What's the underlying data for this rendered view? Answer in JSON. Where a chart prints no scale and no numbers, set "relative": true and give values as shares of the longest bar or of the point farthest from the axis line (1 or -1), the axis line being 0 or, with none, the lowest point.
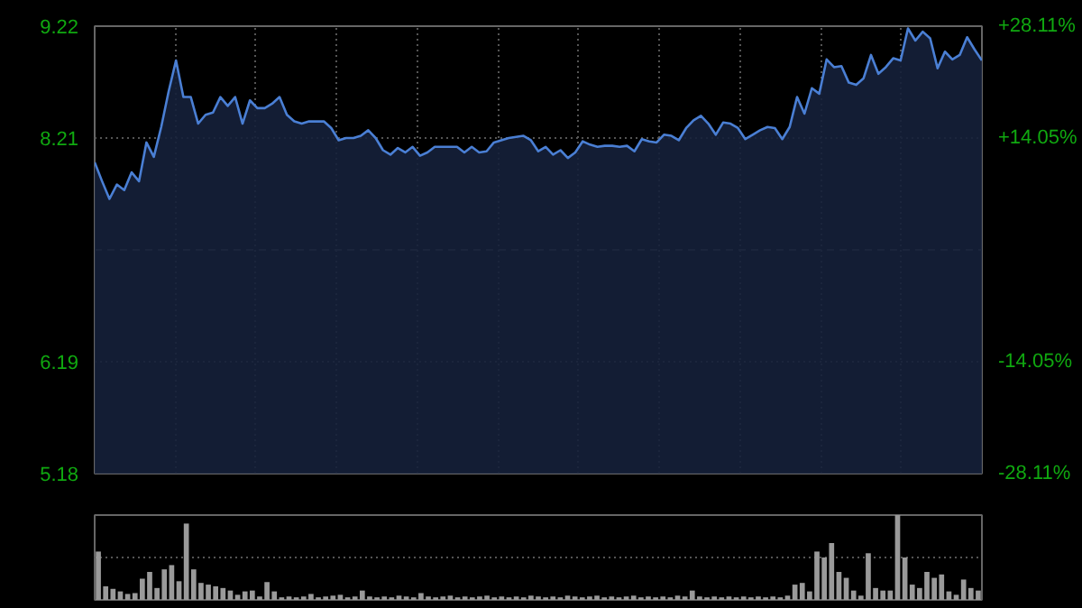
{
  "chart_data": [
    {
      "type": "area",
      "categories": [
        null,
        null,
        null,
        null,
        null,
        null,
        null,
        null,
        null,
        null,
        null,
        null,
        null,
        null,
        null,
        null,
        null,
        null,
        null,
        null,
        null,
        null,
        null,
        null,
        null,
        null,
        null,
        null,
        null,
        null,
        null,
        null,
        null,
        null,
        null,
        null,
        null,
        null,
        null,
        null,
        null,
        null,
        null,
        null,
        null,
        null,
        null,
        null,
        null,
        null,
        null,
        null,
        null,
        null,
        null,
        null,
        null,
        null,
        null,
        null,
        null,
        null,
        null,
        null,
        null,
        null,
        null,
        null,
        null,
        null,
        null,
        null,
        null,
        null,
        null,
        null,
        null,
        null,
        null,
        null,
        null,
        null,
        null,
        null,
        null,
        null,
        null,
        null,
        null,
        null,
        null,
        null,
        null,
        null,
        null,
        null,
        null,
        null,
        null,
        null,
        null,
        null,
        null,
        null,
        null,
        null,
        null,
        null,
        null,
        null,
        null,
        null,
        null,
        null,
        null,
        null,
        null,
        null,
        null,
        null,
        null
      ],
      "series": [
        {
          "color": "#4a7fd4",
          "values": [
            7.99,
            7.82,
            7.66,
            7.79,
            7.74,
            7.9,
            7.82,
            8.17,
            8.04,
            8.31,
            8.63,
            8.91,
            8.58,
            8.58,
            8.34,
            8.42,
            8.44,
            8.58,
            8.5,
            8.58,
            8.34,
            8.55,
            8.48,
            8.48,
            8.52,
            8.58,
            8.42,
            8.36,
            8.34,
            8.36,
            8.36,
            8.36,
            8.3,
            8.19,
            8.21,
            8.21,
            8.23,
            8.28,
            8.21,
            8.1,
            8.06,
            8.12,
            8.08,
            8.13,
            8.05,
            8.08,
            8.13,
            8.13,
            8.13,
            8.13,
            8.08,
            8.13,
            8.08,
            8.09,
            8.17,
            8.19,
            8.21,
            8.22,
            8.23,
            8.19,
            8.09,
            8.13,
            8.06,
            8.1,
            8.03,
            8.08,
            8.18,
            8.15,
            8.13,
            8.14,
            8.14,
            8.13,
            8.14,
            8.09,
            8.2,
            8.18,
            8.17,
            8.24,
            8.23,
            8.19,
            8.3,
            8.37,
            8.41,
            8.34,
            8.24,
            8.35,
            8.34,
            8.3,
            8.2,
            8.24,
            8.28,
            8.31,
            8.3,
            8.2,
            8.31,
            8.58,
            8.43,
            8.66,
            8.61,
            8.92,
            8.85,
            8.86,
            8.71,
            8.69,
            8.75,
            8.96,
            8.79,
            8.85,
            8.93,
            8.91,
            9.2,
            9.09,
            9.17,
            9.11,
            8.84,
            8.99,
            8.92,
            8.96,
            9.12,
            9.01,
            8.91
          ]
        }
      ],
      "ylim": [
        5.18,
        9.22
      ],
      "yticks": [
        5.18,
        6.19,
        8.21,
        9.22
      ],
      "y2lim": [
        -28.11,
        28.11
      ],
      "y2ticks": [
        {
          "value": -28.11,
          "label": "-28.11%"
        },
        {
          "value": -14.05,
          "label": "-14.05%"
        },
        {
          "value": 14.05,
          "label": "+14.05%"
        },
        {
          "value": 28.11,
          "label": "+28.11%"
        }
      ],
      "ref_lines": [
        {
          "axis": "y",
          "value": 7.2,
          "line_style": "dashed"
        }
      ],
      "grid": true
    },
    {
      "type": "bar",
      "relative": true,
      "color": "#9a9a9a",
      "categories": [
        null,
        null,
        null,
        null,
        null,
        null,
        null,
        null,
        null,
        null,
        null,
        null,
        null,
        null,
        null,
        null,
        null,
        null,
        null,
        null,
        null,
        null,
        null,
        null,
        null,
        null,
        null,
        null,
        null,
        null,
        null,
        null,
        null,
        null,
        null,
        null,
        null,
        null,
        null,
        null,
        null,
        null,
        null,
        null,
        null,
        null,
        null,
        null,
        null,
        null,
        null,
        null,
        null,
        null,
        null,
        null,
        null,
        null,
        null,
        null,
        null,
        null,
        null,
        null,
        null,
        null,
        null,
        null,
        null,
        null,
        null,
        null,
        null,
        null,
        null,
        null,
        null,
        null,
        null,
        null,
        null,
        null,
        null,
        null,
        null,
        null,
        null,
        null,
        null,
        null,
        null,
        null,
        null,
        null,
        null,
        null,
        null,
        null,
        null,
        null,
        null,
        null,
        null,
        null,
        null,
        null,
        null,
        null,
        null,
        null,
        null,
        null,
        null,
        null,
        null,
        null,
        null,
        null,
        null,
        null,
        null
      ],
      "values": [
        0.57,
        0.16,
        0.13,
        0.1,
        0.07,
        0.08,
        0.25,
        0.33,
        0.14,
        0.36,
        0.41,
        0.22,
        0.9,
        0.36,
        0.2,
        0.18,
        0.16,
        0.14,
        0.11,
        0.06,
        0.1,
        0.11,
        0.04,
        0.21,
        0.1,
        0.03,
        0.04,
        0.03,
        0.04,
        0.07,
        0.03,
        0.04,
        0.05,
        0.06,
        0.03,
        0.04,
        0.11,
        0.04,
        0.03,
        0.04,
        0.03,
        0.05,
        0.04,
        0.03,
        0.08,
        0.04,
        0.03,
        0.04,
        0.05,
        0.03,
        0.04,
        0.03,
        0.04,
        0.05,
        0.03,
        0.04,
        0.03,
        0.04,
        0.03,
        0.05,
        0.04,
        0.03,
        0.04,
        0.03,
        0.05,
        0.04,
        0.03,
        0.04,
        0.05,
        0.03,
        0.04,
        0.03,
        0.04,
        0.05,
        0.03,
        0.04,
        0.03,
        0.04,
        0.03,
        0.05,
        0.04,
        0.11,
        0.04,
        0.03,
        0.04,
        0.03,
        0.04,
        0.03,
        0.04,
        0.03,
        0.04,
        0.03,
        0.04,
        0.03,
        0.05,
        0.18,
        0.2,
        0.1,
        0.57,
        0.5,
        0.67,
        0.33,
        0.26,
        0.11,
        0.05,
        0.55,
        0.14,
        0.11,
        0.11,
        1.0,
        0.5,
        0.18,
        0.14,
        0.33,
        0.26,
        0.3,
        0.1,
        0.06,
        0.24,
        0.14,
        0.11
      ],
      "ref_lines": [
        {
          "axis": "y",
          "value": 0.5,
          "line_style": "dotted"
        }
      ]
    }
  ]
}
